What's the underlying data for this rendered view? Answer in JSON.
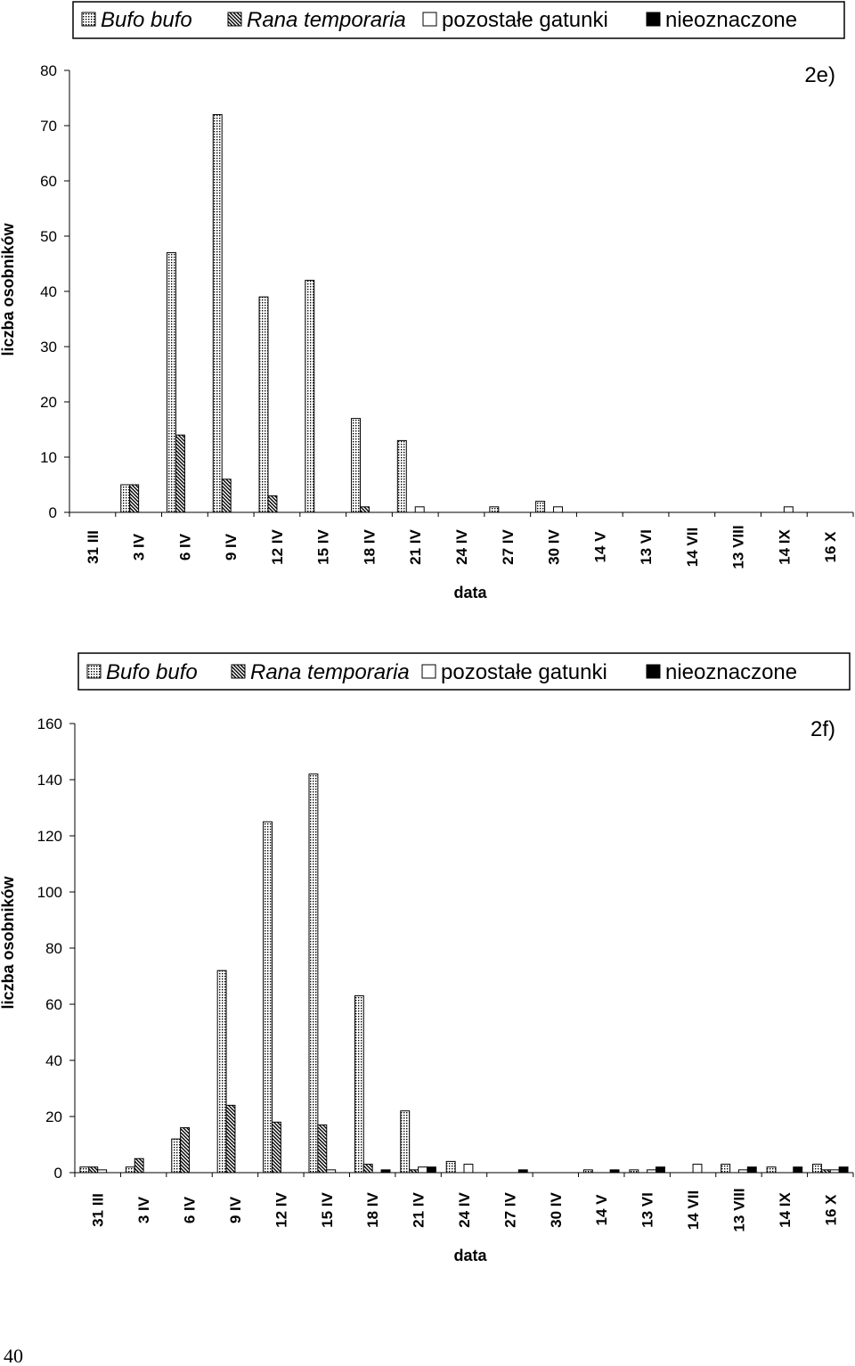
{
  "page_number": "40",
  "legend": {
    "items": [
      {
        "key": "bufo",
        "label": "Bufo bufo",
        "italic": true,
        "pattern": "dots"
      },
      {
        "key": "rana",
        "label": "Rana temporaria",
        "italic": true,
        "pattern": "hatch"
      },
      {
        "key": "other",
        "label": "pozostałe gatunki",
        "italic": false,
        "pattern": "white"
      },
      {
        "key": "unk",
        "label": "nieoznaczone",
        "italic": false,
        "pattern": "black"
      }
    ]
  },
  "chart_data": [
    {
      "type": "bar",
      "panel_label": "2e)",
      "xlabel": "data",
      "ylabel": "liczba osobników",
      "ylim": [
        0,
        80
      ],
      "yticks": [
        0,
        10,
        20,
        30,
        40,
        50,
        60,
        70,
        80
      ],
      "categories": [
        "31 III",
        "3 IV",
        "6 IV",
        "9 IV",
        "12 IV",
        "15 IV",
        "18 IV",
        "21 IV",
        "24 IV",
        "27 IV",
        "30 IV",
        "14 V",
        "13 VI",
        "14 VII",
        "13 VIII",
        "14 IX",
        "16 X"
      ],
      "series": [
        {
          "name": "Bufo bufo",
          "values": [
            0,
            5,
            47,
            72,
            39,
            42,
            17,
            13,
            0,
            1,
            2,
            0,
            0,
            0,
            0,
            0,
            0
          ]
        },
        {
          "name": "Rana temporaria",
          "values": [
            0,
            5,
            14,
            6,
            3,
            0,
            1,
            0,
            0,
            0,
            0,
            0,
            0,
            0,
            0,
            0,
            0
          ]
        },
        {
          "name": "pozostałe gatunki",
          "values": [
            0,
            0,
            0,
            0,
            0,
            0,
            0,
            1,
            0,
            0,
            1,
            0,
            0,
            0,
            0,
            1,
            0
          ]
        },
        {
          "name": "nieoznaczone",
          "values": [
            0,
            0,
            0,
            0,
            0,
            0,
            0,
            0,
            0,
            0,
            0,
            0,
            0,
            0,
            0,
            0,
            0
          ]
        }
      ]
    },
    {
      "type": "bar",
      "panel_label": "2f)",
      "xlabel": "data",
      "ylabel": "liczba osobników",
      "ylim": [
        0,
        160
      ],
      "yticks": [
        0,
        20,
        40,
        60,
        80,
        100,
        120,
        140,
        160
      ],
      "categories": [
        "31 III",
        "3 IV",
        "6 IV",
        "9 IV",
        "12 IV",
        "15 IV",
        "18 IV",
        "21 IV",
        "24 IV",
        "27 IV",
        "30 IV",
        "14 V",
        "13 VI",
        "14 VII",
        "13 VIII",
        "14 IX",
        "16 X"
      ],
      "series": [
        {
          "name": "Bufo bufo",
          "values": [
            2,
            2,
            12,
            72,
            125,
            142,
            63,
            22,
            4,
            0,
            0,
            1,
            1,
            0,
            3,
            2,
            3
          ]
        },
        {
          "name": "Rana temporaria",
          "values": [
            2,
            5,
            16,
            24,
            18,
            17,
            3,
            1,
            0,
            0,
            0,
            0,
            0,
            0,
            0,
            0,
            1
          ]
        },
        {
          "name": "pozostałe gatunki",
          "values": [
            1,
            0,
            0,
            0,
            0,
            1,
            0,
            2,
            3,
            0,
            0,
            0,
            1,
            3,
            1,
            0,
            1
          ]
        },
        {
          "name": "nieoznaczone",
          "values": [
            0,
            0,
            0,
            0,
            0,
            0,
            1,
            2,
            0,
            1,
            0,
            1,
            2,
            0,
            2,
            2,
            2
          ]
        }
      ]
    }
  ]
}
